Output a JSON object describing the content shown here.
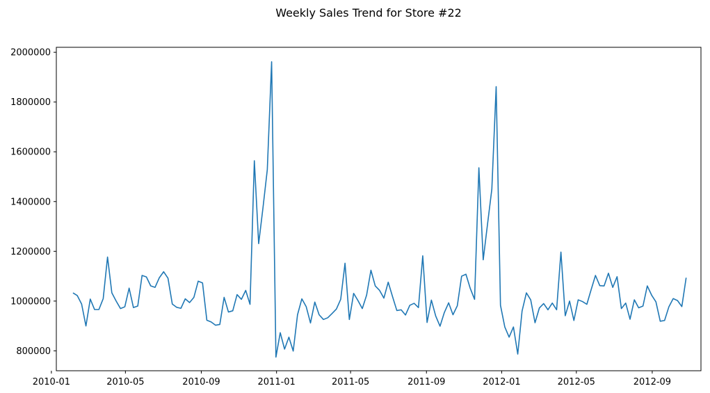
{
  "chart_data": {
    "type": "line",
    "title": "Weekly Sales Trend for Store #22",
    "xlabel": "",
    "ylabel": "",
    "ylim": [
      720000,
      2020000
    ],
    "xlim": [
      "2010-01-09",
      "2012-11-19"
    ],
    "grid": false,
    "line_color": "#1f77b4",
    "x_tick_labels": [
      "2010-01",
      "2010-05",
      "2010-09",
      "2011-01",
      "2011-05",
      "2011-09",
      "2012-01",
      "2012-05",
      "2012-09"
    ],
    "y_tick_values": [
      800000,
      1000000,
      1200000,
      1400000,
      1600000,
      1800000,
      2000000
    ],
    "y_tick_labels": [
      "800000",
      "1000000",
      "1200000",
      "1400000",
      "1600000",
      "1800000",
      "2000000"
    ],
    "series": [
      {
        "start_date": "2010-02-05",
        "week_step_days": 7,
        "values": [
          1033000,
          1022000,
          988000,
          900000,
          1008000,
          966000,
          966000,
          1010000,
          1177000,
          1033000,
          1000000,
          970000,
          977000,
          1052000,
          974000,
          980000,
          1103000,
          1097000,
          1061000,
          1055000,
          1094000,
          1118000,
          1092000,
          988000,
          975000,
          971000,
          1009000,
          994000,
          1015000,
          1080000,
          1073000,
          923000,
          916000,
          903000,
          906000,
          1015000,
          956000,
          961000,
          1026000,
          1007000,
          1043000,
          987000,
          1564000,
          1231000,
          1375000,
          1528000,
          1962000,
          775000,
          873000,
          807000,
          855000,
          799000,
          945000,
          1009000,
          978000,
          912000,
          996000,
          945000,
          926000,
          933000,
          950000,
          968000,
          1007000,
          1152000,
          926000,
          1031000,
          1002000,
          970000,
          1024000,
          1124000,
          1061000,
          1043000,
          1012000,
          1076000,
          1018000,
          962000,
          965000,
          944000,
          983000,
          991000,
          974000,
          1182000,
          914000,
          1004000,
          940000,
          899000,
          954000,
          993000,
          945000,
          981000,
          1100000,
          1108000,
          1051000,
          1007000,
          1536000,
          1166000,
          1309000,
          1450000,
          1862000,
          983000,
          896000,
          855000,
          896000,
          787000,
          960000,
          1033000,
          1005000,
          913000,
          972000,
          990000,
          965000,
          992000,
          965000,
          1197000,
          941000,
          1000000,
          922000,
          1005000,
          998000,
          987000,
          1046000,
          1103000,
          1062000,
          1061000,
          1112000,
          1055000,
          1098000,
          970000,
          992000,
          927000,
          1005000,
          973000,
          980000,
          1061000,
          1024000,
          997000,
          919000,
          922000,
          977000,
          1010000,
          1002000,
          978000,
          1094000
        ]
      }
    ]
  }
}
